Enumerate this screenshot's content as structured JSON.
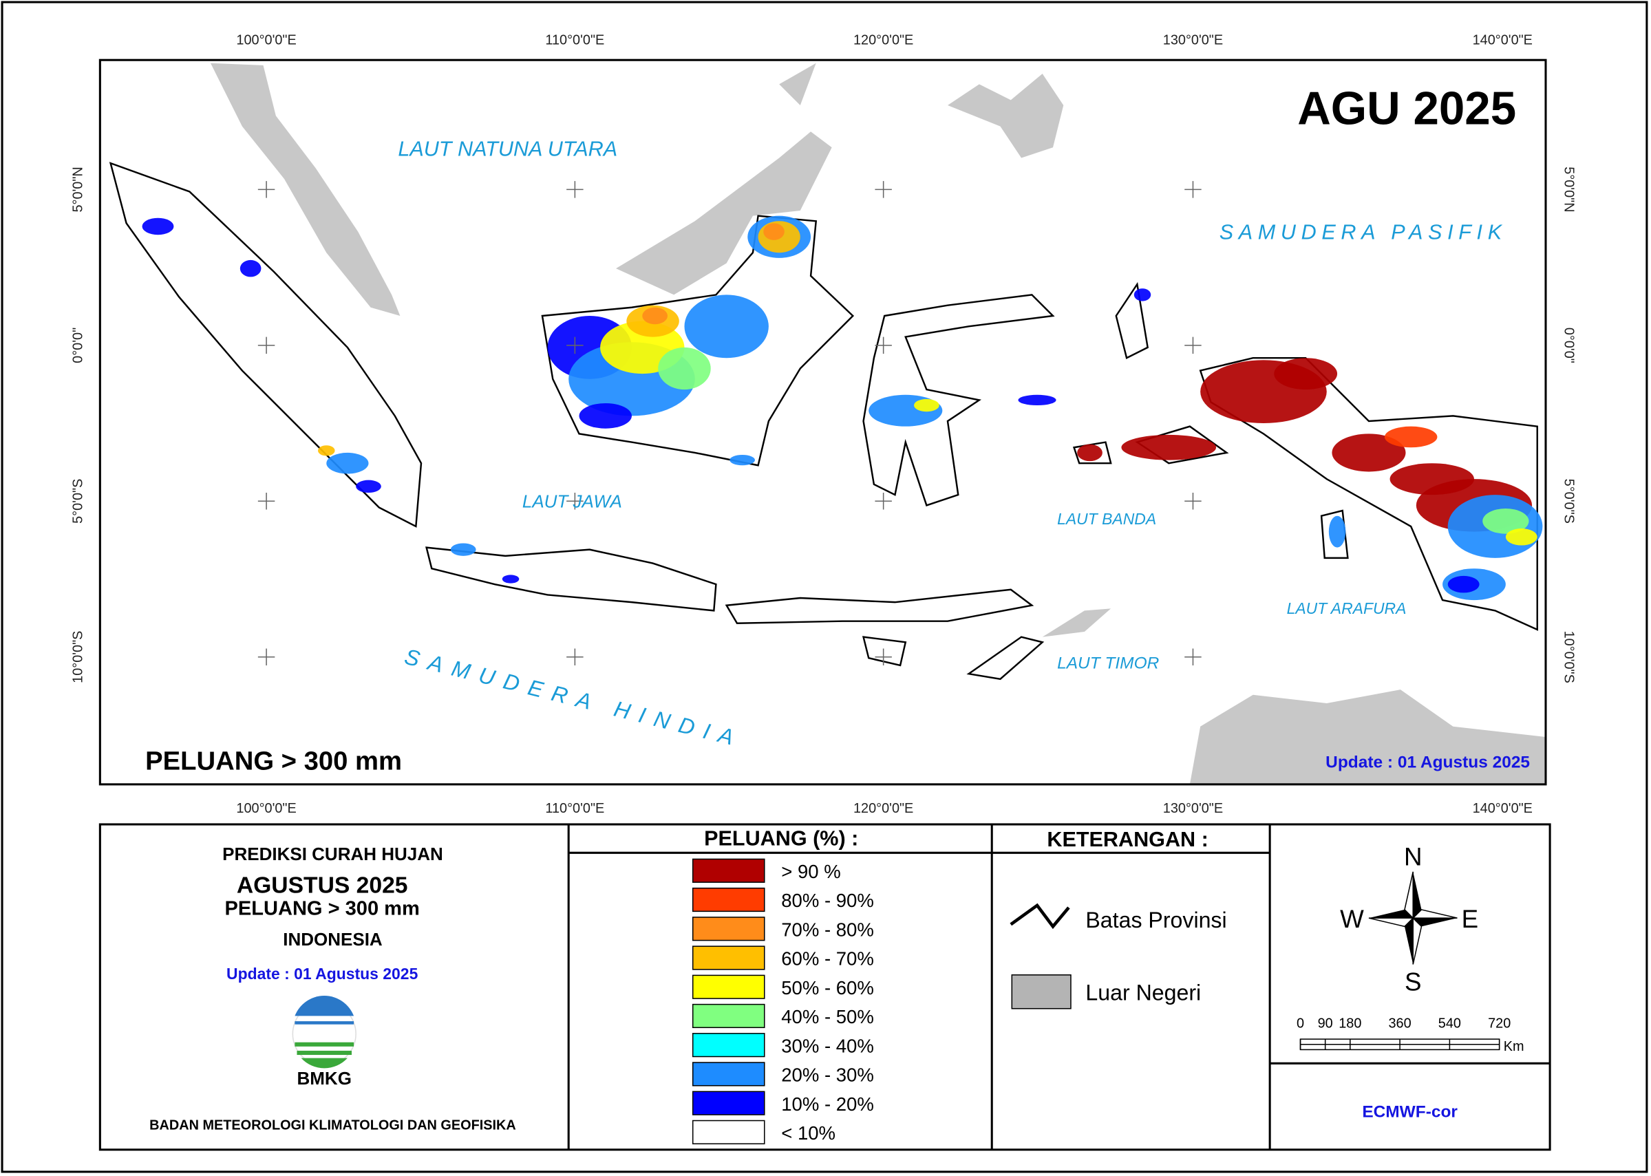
{
  "map": {
    "title": "AGU 2025",
    "subtitle": "PELUANG > 300 mm",
    "update": "Update : 01 Agustus  2025",
    "top_lon_labels": [
      "100°0'0\"E",
      "110°0'0\"E",
      "120°0'0\"E",
      "130°0'0\"E",
      "140°0'0\"E"
    ],
    "bottom_lon_labels": [
      "100°0'0\"E",
      "110°0'0\"E",
      "120°0'0\"E",
      "130°0'0\"E",
      "140°0'0\"E"
    ],
    "left_lat_labels": [
      "5°0'0\"N",
      "0°0'0\"",
      "5°0'0\"S",
      "10°0'0\"S"
    ],
    "right_lat_labels": [
      "5°0'0\"N",
      "0°0'0\"",
      "5°0'0\"S",
      "10°0'0\"S"
    ],
    "sea_labels": [
      "LAUT NATUNA UTARA",
      "SAMUDERA PASIFIK",
      "LAUT JAWA",
      "LAUT BANDA",
      "LAUT ARAFURA",
      "LAUT TIMOR",
      "SAMUDERA HINDIA"
    ]
  },
  "panel": {
    "heading": "PREDIKSI CURAH HUJAN",
    "month": "AGUSTUS 2025",
    "threshold": "PELUANG > 300 mm",
    "region": "INDONESIA",
    "update": "Update : 01 Agustus  2025",
    "logo_text": "BMKG",
    "institution": "BADAN METEOROLOGI KLIMATOLOGI DAN GEOFISIKA"
  },
  "legend": {
    "title": "PELUANG (%) :",
    "classes": [
      {
        "label": "> 90 %",
        "color": "#b00000"
      },
      {
        "label": "80% - 90%",
        "color": "#ff3c00"
      },
      {
        "label": "70% - 80%",
        "color": "#ff8c1a"
      },
      {
        "label": "60% - 70%",
        "color": "#ffbf00"
      },
      {
        "label": "50% - 60%",
        "color": "#ffff00"
      },
      {
        "label": "40% - 50%",
        "color": "#80ff80"
      },
      {
        "label": "30% - 40%",
        "color": "#00ffff"
      },
      {
        "label": "20% - 30%",
        "color": "#1e8cff"
      },
      {
        "label": "10% - 20%",
        "color": "#0000ff"
      },
      {
        "label": "< 10%",
        "color": "#ffffff"
      }
    ]
  },
  "keterangan": {
    "title": "KETERANGAN :",
    "items": [
      "Batas Provinsi",
      "Luar Negeri"
    ]
  },
  "compass": {
    "n": "N",
    "e": "E",
    "s": "S",
    "w": "W"
  },
  "scale_bar": {
    "labels": [
      0,
      90,
      180,
      360,
      540,
      720
    ],
    "unit": "Km"
  },
  "model": "ECMWF-cor"
}
